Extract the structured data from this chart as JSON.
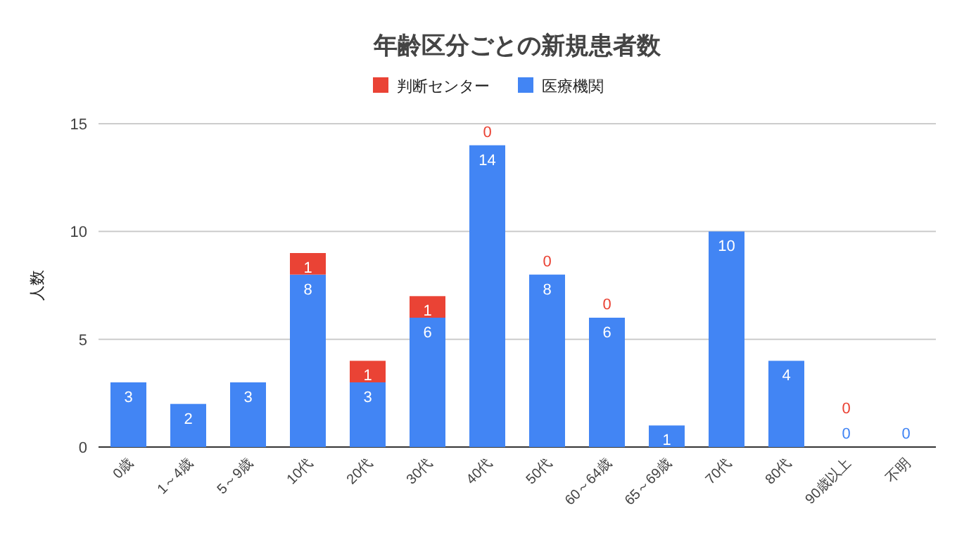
{
  "chart_data": {
    "type": "bar",
    "stacked": true,
    "title": "年齢区分ごとの新規患者数",
    "ylabel": "人数",
    "categories": [
      "0歳",
      "1～4歳",
      "5～9歳",
      "10代",
      "20代",
      "30代",
      "40代",
      "50代",
      "60～64歳",
      "65～69歳",
      "70代",
      "80代",
      "90歳以上",
      "不明"
    ],
    "series": [
      {
        "name": "医療機関",
        "color": "#4285f4",
        "values": [
          3,
          2,
          3,
          8,
          3,
          6,
          14,
          8,
          6,
          1,
          10,
          4,
          0,
          0
        ],
        "value_labels": [
          "3",
          "2",
          "3",
          "8",
          "3",
          "6",
          "14",
          "8",
          "6",
          "1",
          "10",
          "4",
          "0",
          "0"
        ]
      },
      {
        "name": "判断センター",
        "color": "#ea4335",
        "values": [
          0,
          0,
          0,
          1,
          1,
          1,
          0,
          0,
          0,
          0,
          0,
          0,
          0,
          0
        ],
        "value_labels": [
          null,
          null,
          null,
          "1",
          "1",
          "1",
          "0",
          "0",
          "0",
          null,
          null,
          null,
          "0",
          null
        ]
      }
    ],
    "ylim": [
      0,
      15
    ],
    "yticks": [
      0,
      5,
      10,
      15
    ],
    "grid": "y",
    "legend": "top"
  }
}
